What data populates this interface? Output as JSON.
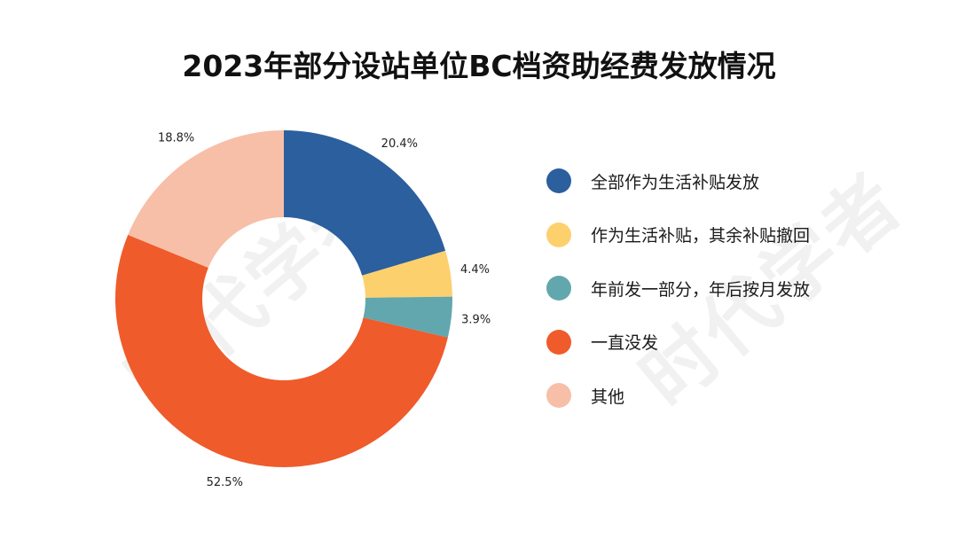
{
  "chart_data": {
    "type": "pie",
    "donut": true,
    "title": "2023年部分设站单位BC档资助经费发放情况",
    "legend_position": "right",
    "categories": [
      "全部作为生活补贴发放",
      "作为生活补贴，其余补贴撤回",
      "年前发一部分，年后按月发放",
      "一直没发",
      "其他"
    ],
    "values": [
      20.4,
      4.4,
      3.9,
      52.5,
      18.8
    ],
    "value_labels": [
      "20.4%",
      "4.4%",
      "3.9%",
      "52.5%",
      "18.8%"
    ],
    "colors": [
      "#2B5F9E",
      "#FDD06E",
      "#62A7AE",
      "#EF5B2B",
      "#F7BFA8"
    ]
  },
  "watermark": "时代学者"
}
